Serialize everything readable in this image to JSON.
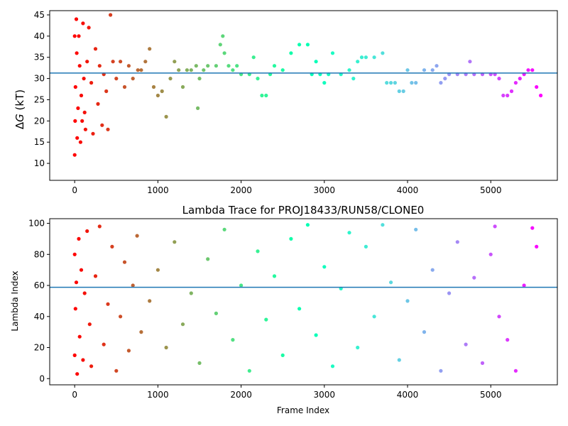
{
  "chart_data": [
    {
      "type": "scatter",
      "title": "",
      "xlabel": "",
      "ylabel_prefix": "Δ",
      "ylabel_var": "G",
      "ylabel_suffix": " (kT)",
      "xlim": [
        -300,
        5800
      ],
      "ylim": [
        6,
        46
      ],
      "xticks": [
        0,
        1000,
        2000,
        3000,
        4000,
        5000
      ],
      "yticks": [
        10,
        15,
        20,
        25,
        30,
        35,
        40,
        45
      ],
      "hline": 31.3,
      "hline_color": "#1f77b4",
      "colormap": "rainbow",
      "n_frames": 5600,
      "series": [
        {
          "description": "free energy estimate per frame",
          "points": [
            [
              0,
              12
            ],
            [
              0,
              40
            ],
            [
              5,
              20
            ],
            [
              10,
              28
            ],
            [
              20,
              44
            ],
            [
              25,
              36
            ],
            [
              30,
              16
            ],
            [
              40,
              23
            ],
            [
              50,
              40
            ],
            [
              60,
              33
            ],
            [
              70,
              15
            ],
            [
              80,
              26
            ],
            [
              90,
              20
            ],
            [
              100,
              43
            ],
            [
              110,
              30
            ],
            [
              120,
              22
            ],
            [
              130,
              18
            ],
            [
              150,
              34
            ],
            [
              170,
              42
            ],
            [
              200,
              29
            ],
            [
              220,
              17
            ],
            [
              250,
              37
            ],
            [
              280,
              24
            ],
            [
              300,
              33
            ],
            [
              330,
              19
            ],
            [
              350,
              31
            ],
            [
              380,
              27
            ],
            [
              400,
              18
            ],
            [
              430,
              45
            ],
            [
              460,
              34
            ],
            [
              500,
              30
            ],
            [
              550,
              34
            ],
            [
              600,
              28
            ],
            [
              650,
              33
            ],
            [
              700,
              30
            ],
            [
              760,
              32
            ],
            [
              800,
              32
            ],
            [
              850,
              34
            ],
            [
              900,
              37
            ],
            [
              950,
              28
            ],
            [
              1000,
              26
            ],
            [
              1050,
              27
            ],
            [
              1100,
              21
            ],
            [
              1150,
              30
            ],
            [
              1200,
              34
            ],
            [
              1250,
              32
            ],
            [
              1300,
              28
            ],
            [
              1350,
              32
            ],
            [
              1400,
              32
            ],
            [
              1460,
              33
            ],
            [
              1480,
              23
            ],
            [
              1500,
              30
            ],
            [
              1550,
              32
            ],
            [
              1600,
              33
            ],
            [
              1700,
              33
            ],
            [
              1750,
              38
            ],
            [
              1780,
              40
            ],
            [
              1800,
              36
            ],
            [
              1850,
              33
            ],
            [
              1900,
              32
            ],
            [
              1950,
              33
            ],
            [
              2000,
              31
            ],
            [
              2100,
              31
            ],
            [
              2150,
              35
            ],
            [
              2200,
              30
            ],
            [
              2250,
              26
            ],
            [
              2300,
              26
            ],
            [
              2350,
              31
            ],
            [
              2400,
              33
            ],
            [
              2500,
              32
            ],
            [
              2600,
              36
            ],
            [
              2700,
              38
            ],
            [
              2800,
              38
            ],
            [
              2850,
              31
            ],
            [
              2900,
              34
            ],
            [
              2950,
              31
            ],
            [
              3000,
              29
            ],
            [
              3050,
              31
            ],
            [
              3100,
              36
            ],
            [
              3200,
              31
            ],
            [
              3300,
              32
            ],
            [
              3350,
              30
            ],
            [
              3400,
              34
            ],
            [
              3450,
              35
            ],
            [
              3500,
              35
            ],
            [
              3600,
              35
            ],
            [
              3700,
              36
            ],
            [
              3750,
              29
            ],
            [
              3800,
              29
            ],
            [
              3850,
              29
            ],
            [
              3900,
              27
            ],
            [
              3950,
              27
            ],
            [
              4000,
              32
            ],
            [
              4050,
              29
            ],
            [
              4100,
              29
            ],
            [
              4200,
              32
            ],
            [
              4300,
              32
            ],
            [
              4350,
              33
            ],
            [
              4400,
              29
            ],
            [
              4450,
              30
            ],
            [
              4500,
              31
            ],
            [
              4600,
              31
            ],
            [
              4700,
              31
            ],
            [
              4750,
              34
            ],
            [
              4800,
              31
            ],
            [
              4900,
              31
            ],
            [
              5000,
              31
            ],
            [
              5050,
              31
            ],
            [
              5100,
              30
            ],
            [
              5150,
              26
            ],
            [
              5200,
              26
            ],
            [
              5250,
              27
            ],
            [
              5300,
              29
            ],
            [
              5350,
              30
            ],
            [
              5400,
              31
            ],
            [
              5450,
              32
            ],
            [
              5500,
              32
            ],
            [
              5550,
              28
            ],
            [
              5600,
              26
            ]
          ]
        }
      ]
    },
    {
      "type": "scatter",
      "title": "Lambda Trace for PROJ18433/RUN58/CLONE0",
      "xlabel": "Frame Index",
      "ylabel": "Lambda Index",
      "xlim": [
        -300,
        5800
      ],
      "ylim": [
        -4,
        103
      ],
      "xticks": [
        0,
        1000,
        2000,
        3000,
        4000,
        5000
      ],
      "yticks": [
        0,
        20,
        40,
        60,
        80,
        100
      ],
      "hline": 58.8,
      "hline_color": "#1f77b4",
      "colormap": "rainbow",
      "n_frames": 5600,
      "series": [
        {
          "description": "lambda index per frame",
          "points": [
            [
              0,
              15
            ],
            [
              0,
              80
            ],
            [
              10,
              45
            ],
            [
              20,
              62
            ],
            [
              30,
              3
            ],
            [
              50,
              90
            ],
            [
              60,
              27
            ],
            [
              80,
              70
            ],
            [
              100,
              12
            ],
            [
              120,
              55
            ],
            [
              150,
              95
            ],
            [
              180,
              35
            ],
            [
              200,
              8
            ],
            [
              250,
              66
            ],
            [
              300,
              98
            ],
            [
              350,
              22
            ],
            [
              400,
              48
            ],
            [
              450,
              85
            ],
            [
              500,
              5
            ],
            [
              550,
              40
            ],
            [
              600,
              75
            ],
            [
              650,
              18
            ],
            [
              700,
              60
            ],
            [
              750,
              92
            ],
            [
              800,
              30
            ],
            [
              900,
              50
            ],
            [
              1000,
              70
            ],
            [
              1100,
              20
            ],
            [
              1200,
              88
            ],
            [
              1300,
              35
            ],
            [
              1400,
              55
            ],
            [
              1500,
              10
            ],
            [
              1600,
              77
            ],
            [
              1700,
              42
            ],
            [
              1800,
              96
            ],
            [
              1900,
              25
            ],
            [
              2000,
              60
            ],
            [
              2100,
              5
            ],
            [
              2200,
              82
            ],
            [
              2300,
              38
            ],
            [
              2400,
              66
            ],
            [
              2500,
              15
            ],
            [
              2600,
              90
            ],
            [
              2700,
              45
            ],
            [
              2800,
              99
            ],
            [
              2900,
              28
            ],
            [
              3000,
              72
            ],
            [
              3100,
              8
            ],
            [
              3200,
              58
            ],
            [
              3300,
              94
            ],
            [
              3400,
              20
            ],
            [
              3500,
              85
            ],
            [
              3600,
              40
            ],
            [
              3700,
              99
            ],
            [
              3800,
              62
            ],
            [
              3900,
              12
            ],
            [
              4000,
              50
            ],
            [
              4100,
              96
            ],
            [
              4200,
              30
            ],
            [
              4300,
              70
            ],
            [
              4400,
              5
            ],
            [
              4500,
              55
            ],
            [
              4600,
              88
            ],
            [
              4700,
              22
            ],
            [
              4800,
              65
            ],
            [
              4900,
              10
            ],
            [
              5000,
              80
            ],
            [
              5050,
              98
            ],
            [
              5100,
              40
            ],
            [
              5200,
              25
            ],
            [
              5300,
              5
            ],
            [
              5400,
              60
            ],
            [
              5500,
              97
            ],
            [
              5550,
              85
            ]
          ]
        }
      ]
    }
  ]
}
